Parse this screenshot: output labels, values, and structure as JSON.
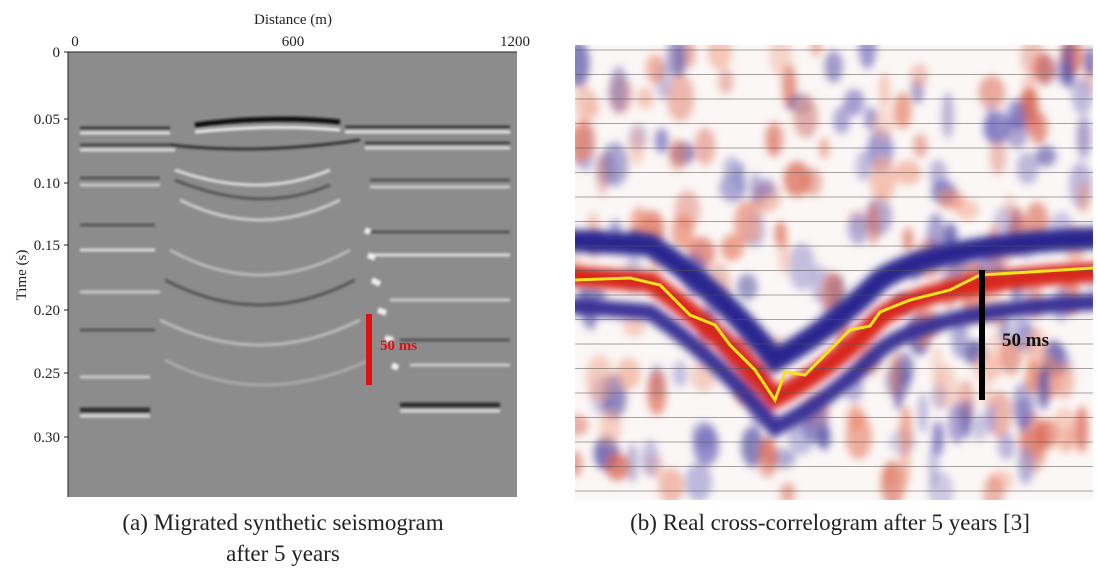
{
  "panels": [
    {
      "x_axis_label": "Distance (m)",
      "x_ticks": [
        "0",
        "600",
        "1200"
      ],
      "y_axis_label": "Time (s)",
      "y_ticks": [
        "0",
        "0.05",
        "0.10",
        "0.15",
        "0.20",
        "0.25",
        "0.30"
      ],
      "annotation": "50 ms",
      "caption": [
        "(a) Migrated synthetic seismogram",
        "after 5 years"
      ]
    },
    {
      "annotation": "50 ms",
      "caption": [
        "(b) Real cross-correlogram after 5 years [3]"
      ]
    }
  ]
}
